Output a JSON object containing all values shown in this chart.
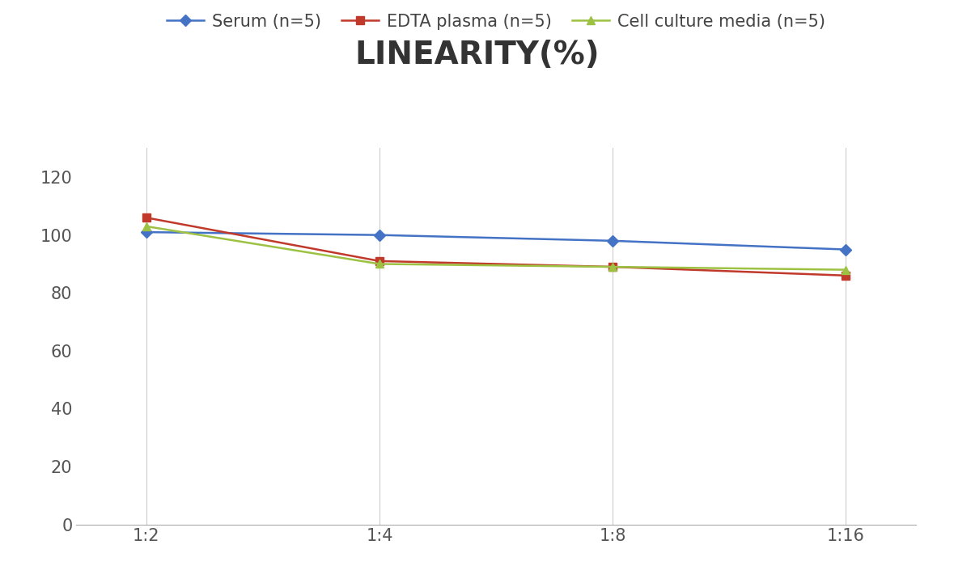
{
  "title": "LINEARITY(%)",
  "x_labels": [
    "1:2",
    "1:4",
    "1:8",
    "1:16"
  ],
  "series": [
    {
      "label": "Serum (n=5)",
      "values": [
        101,
        100,
        98,
        95
      ],
      "color": "#4472C4",
      "marker": "D",
      "marker_size": 7,
      "linewidth": 1.8
    },
    {
      "label": "EDTA plasma (n=5)",
      "values": [
        106,
        91,
        89,
        86
      ],
      "color": "#C0392B",
      "marker": "s",
      "marker_size": 7,
      "linewidth": 1.8
    },
    {
      "label": "Cell culture media (n=5)",
      "values": [
        103,
        90,
        89,
        88
      ],
      "color": "#9DC243",
      "marker": "^",
      "marker_size": 7,
      "linewidth": 1.8
    }
  ],
  "ylim": [
    0,
    130
  ],
  "yticks": [
    0,
    20,
    40,
    60,
    80,
    100,
    120
  ],
  "title_fontsize": 28,
  "tick_fontsize": 15,
  "legend_fontsize": 15,
  "background_color": "#FFFFFF",
  "grid_color": "#CCCCCC",
  "grid_linewidth": 0.8,
  "title_color": "#333333"
}
